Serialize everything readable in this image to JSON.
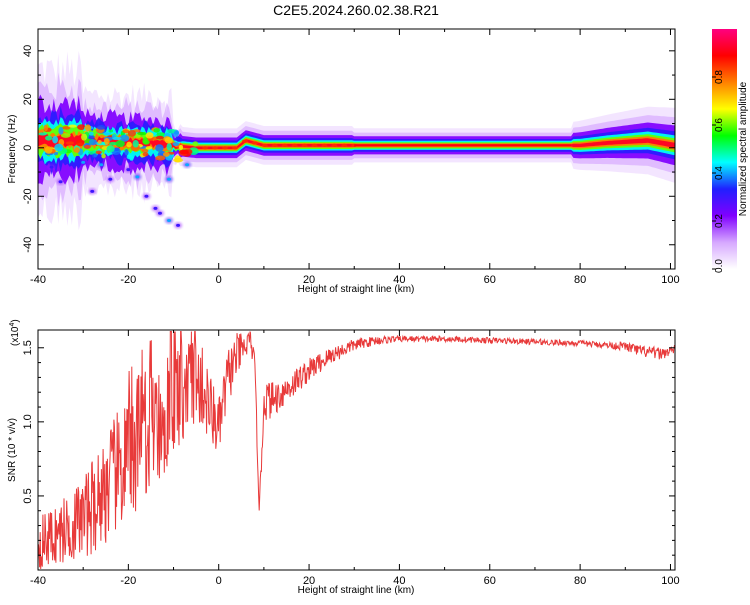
{
  "title": "C2E5.2024.260.02.38.R21",
  "colors": {
    "snr_line": "#e83a3a",
    "frame": "#000000",
    "background": "#ffffff",
    "spectrogram_low": "#8000ff",
    "spectrogram_high": "#ff0000"
  },
  "chart_data": [
    {
      "type": "heatmap",
      "name": "spectrogram",
      "xlabel": "Height of straight line (km)",
      "ylabel": "Frequency (Hz)",
      "xlim": [
        -40,
        101
      ],
      "ylim": [
        -50,
        49
      ],
      "xticks": [
        -40,
        -20,
        0,
        20,
        40,
        60,
        80,
        100
      ],
      "yticks": [
        -40,
        -20,
        0,
        20,
        40
      ],
      "colorbar": {
        "label": "Normalized spectral amplitude",
        "range": [
          0,
          1
        ],
        "ticks": [
          "0.0",
          "0.2",
          "0.4",
          "0.6",
          "0.8"
        ],
        "stops": [
          "#ffffff",
          "#d6a8ff",
          "#8000ff",
          "#2020ff",
          "#00ffff",
          "#00ff00",
          "#ffff00",
          "#ff8000",
          "#ff0000",
          "#ff0080"
        ]
      },
      "ridge": [
        {
          "x": -40,
          "y": 3
        },
        {
          "x": -30,
          "y": 3
        },
        {
          "x": -20,
          "y": 2
        },
        {
          "x": -15,
          "y": 2
        },
        {
          "x": -10,
          "y": 1
        },
        {
          "x": -5,
          "y": 0
        },
        {
          "x": 0,
          "y": 0
        },
        {
          "x": 4,
          "y": 0
        },
        {
          "x": 6,
          "y": 3
        },
        {
          "x": 8,
          "y": 2
        },
        {
          "x": 10,
          "y": 1
        },
        {
          "x": 20,
          "y": 1
        },
        {
          "x": 40,
          "y": 1
        },
        {
          "x": 60,
          "y": 1
        },
        {
          "x": 80,
          "y": 1
        },
        {
          "x": 86,
          "y": 2
        },
        {
          "x": 95,
          "y": 3
        },
        {
          "x": 101,
          "y": 1
        }
      ],
      "scatter_blobs": [
        {
          "x": -37,
          "y": -8,
          "amp": 0.2
        },
        {
          "x": -35,
          "y": -14,
          "amp": 0.2
        },
        {
          "x": -28,
          "y": -18,
          "amp": 0.2
        },
        {
          "x": -24,
          "y": -13,
          "amp": 0.2
        },
        {
          "x": -20,
          "y": -9,
          "amp": 0.2
        },
        {
          "x": -18,
          "y": -12,
          "amp": 0.3
        },
        {
          "x": -16,
          "y": -20,
          "amp": 0.2
        },
        {
          "x": -14,
          "y": -25,
          "amp": 0.2
        },
        {
          "x": -13,
          "y": -27,
          "amp": 0.2
        },
        {
          "x": -11,
          "y": -30,
          "amp": 0.3
        },
        {
          "x": -11,
          "y": -13,
          "amp": 0.3
        },
        {
          "x": -9,
          "y": -32,
          "amp": 0.2
        },
        {
          "x": -7,
          "y": -7,
          "amp": 0.3
        },
        {
          "x": -30,
          "y": -6,
          "amp": 0.3
        },
        {
          "x": -26,
          "y": -7,
          "amp": 0.3
        }
      ]
    },
    {
      "type": "line",
      "name": "snr",
      "xlabel": "Height of straight line (km)",
      "ylabel": "SNR (10 * v/v)",
      "multiplier_label": "(x10",
      "multiplier_exp": "4",
      "multiplier_close": ")",
      "xlim": [
        -40,
        101
      ],
      "ylim": [
        0.0,
        1.62
      ],
      "xticks": [
        -40,
        -20,
        0,
        20,
        40,
        60,
        80,
        100
      ],
      "yticks": [
        {
          "value": 0.5,
          "label": "0.5"
        },
        {
          "value": 1.0,
          "label": "1.0"
        },
        {
          "value": 1.5,
          "label": "1.5"
        }
      ],
      "series": [
        {
          "name": "SNR",
          "x": [
            -40,
            -35,
            -30,
            -25,
            -20,
            -16,
            -12,
            -8,
            -4,
            0,
            2,
            4,
            6,
            7,
            8,
            9,
            10,
            12,
            15,
            20,
            25,
            30,
            35,
            40,
            50,
            60,
            70,
            80,
            85,
            90,
            93,
            95,
            98,
            101
          ],
          "y": [
            0.18,
            0.25,
            0.35,
            0.55,
            0.75,
            0.95,
            1.05,
            1.15,
            1.25,
            0.95,
            1.3,
            1.45,
            1.5,
            1.58,
            1.35,
            0.4,
            1.15,
            1.15,
            1.22,
            1.35,
            1.45,
            1.52,
            1.55,
            1.56,
            1.56,
            1.55,
            1.54,
            1.53,
            1.52,
            1.51,
            1.48,
            1.47,
            1.46,
            1.49
          ],
          "noise_amplitude": [
            0.18,
            0.22,
            0.28,
            0.38,
            0.45,
            0.45,
            0.42,
            0.38,
            0.3,
            0.2,
            0.2,
            0.15,
            0.1,
            0.05,
            0.1,
            0.05,
            0.15,
            0.12,
            0.1,
            0.08,
            0.06,
            0.04,
            0.03,
            0.02,
            0.02,
            0.02,
            0.02,
            0.02,
            0.02,
            0.03,
            0.04,
            0.04,
            0.04,
            0.03
          ]
        }
      ]
    }
  ]
}
